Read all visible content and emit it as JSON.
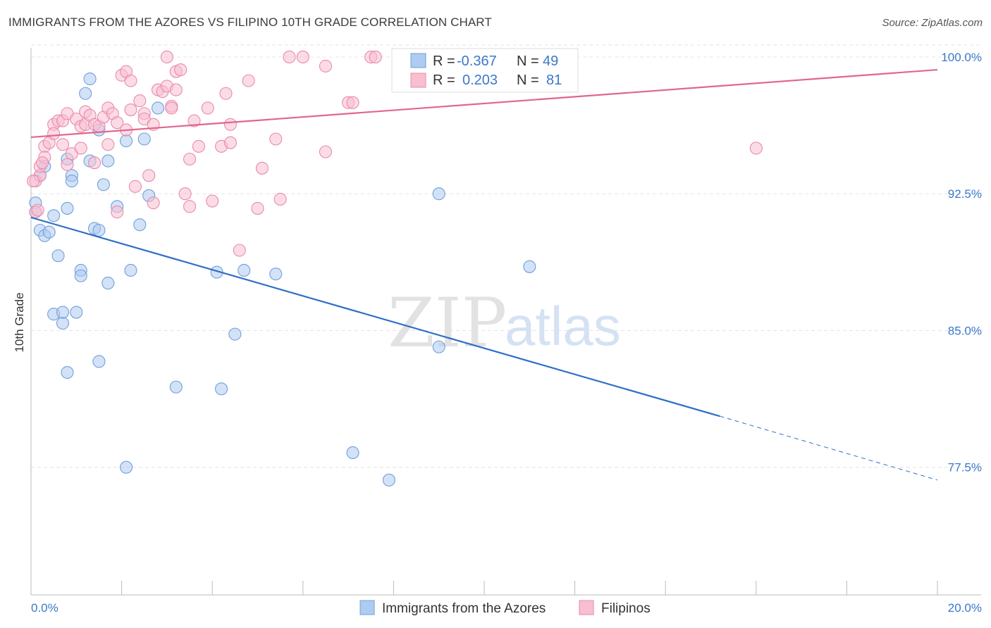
{
  "title": "IMMIGRANTS FROM THE AZORES VS FILIPINO 10TH GRADE CORRELATION CHART",
  "source": "Source: ZipAtlas.com",
  "watermark": {
    "zip": "ZIP",
    "atlas": "atlas"
  },
  "legend": {
    "rows": [
      {
        "r_label": "R =",
        "r_value": "-0.367",
        "n_label": "N =",
        "n_value": "49",
        "color": "#a8c8f0"
      },
      {
        "r_label": "R =",
        "r_value": " 0.203",
        "n_label": "N =",
        "n_value": "81",
        "color": "#f5b6ca"
      }
    ]
  },
  "chart_data": {
    "type": "scatter",
    "title": "IMMIGRANTS FROM THE AZORES VS FILIPINO 10TH GRADE CORRELATION CHART",
    "xlabel": "",
    "ylabel": "10th Grade",
    "xlim": [
      0,
      20
    ],
    "ylim": [
      70.5,
      100.5
    ],
    "x_tick_labels": [
      "0.0%",
      "20.0%"
    ],
    "y_ticks": [
      77.5,
      85.0,
      92.5,
      100.0
    ],
    "y_tick_labels": [
      "77.5%",
      "85.0%",
      "92.5%",
      "100.0%"
    ],
    "grid": true,
    "legend_position": "top-center",
    "series": [
      {
        "name": "Immigrants from the Azores",
        "color": "#6fa0dc",
        "fill": "#aecbf0",
        "trend": {
          "x": [
            0,
            15.2
          ],
          "y": [
            91.2,
            80.3
          ],
          "dash_to": [
            20,
            76.8
          ]
        },
        "points": [
          [
            0.1,
            92.0
          ],
          [
            0.1,
            91.5
          ],
          [
            0.2,
            93.5
          ],
          [
            0.3,
            94.0
          ],
          [
            0.2,
            90.5
          ],
          [
            0.3,
            90.2
          ],
          [
            0.4,
            90.4
          ],
          [
            0.5,
            91.3
          ],
          [
            0.6,
            89.1
          ],
          [
            0.8,
            94.4
          ],
          [
            0.8,
            91.7
          ],
          [
            0.9,
            93.5
          ],
          [
            0.9,
            93.2
          ],
          [
            1.1,
            88.3
          ],
          [
            1.1,
            88.0
          ],
          [
            1.2,
            98.0
          ],
          [
            1.3,
            98.8
          ],
          [
            1.3,
            94.3
          ],
          [
            1.4,
            90.6
          ],
          [
            1.5,
            96.0
          ],
          [
            1.5,
            90.5
          ],
          [
            1.6,
            93.0
          ],
          [
            1.7,
            94.3
          ],
          [
            1.7,
            87.6
          ],
          [
            1.9,
            91.8
          ],
          [
            2.1,
            95.4
          ],
          [
            2.2,
            88.3
          ],
          [
            2.4,
            90.8
          ],
          [
            2.5,
            95.5
          ],
          [
            2.6,
            92.4
          ],
          [
            2.8,
            97.2
          ],
          [
            0.5,
            85.9
          ],
          [
            0.7,
            85.4
          ],
          [
            0.7,
            86.0
          ],
          [
            1.0,
            86.0
          ],
          [
            0.8,
            82.7
          ],
          [
            1.5,
            83.3
          ],
          [
            3.2,
            81.9
          ],
          [
            4.1,
            88.2
          ],
          [
            4.7,
            88.3
          ],
          [
            5.4,
            88.1
          ],
          [
            4.5,
            84.8
          ],
          [
            4.2,
            81.8
          ],
          [
            7.1,
            78.3
          ],
          [
            2.1,
            77.5
          ],
          [
            7.9,
            76.8
          ],
          [
            9.0,
            92.5
          ],
          [
            9.0,
            84.1
          ],
          [
            11.0,
            88.5
          ]
        ]
      },
      {
        "name": "Filipinos",
        "color": "#e98aaa",
        "fill": "#f7bfd1",
        "trend": {
          "x": [
            0,
            20
          ],
          "y": [
            95.6,
            99.3
          ]
        },
        "points": [
          [
            0.1,
            93.2
          ],
          [
            0.1,
            91.5
          ],
          [
            0.2,
            93.5
          ],
          [
            0.2,
            94.0
          ],
          [
            0.3,
            95.1
          ],
          [
            0.3,
            94.5
          ],
          [
            0.4,
            95.3
          ],
          [
            0.5,
            96.3
          ],
          [
            0.5,
            95.8
          ],
          [
            0.6,
            96.5
          ],
          [
            0.7,
            96.5
          ],
          [
            0.7,
            95.2
          ],
          [
            0.8,
            96.9
          ],
          [
            0.8,
            94.1
          ],
          [
            0.9,
            94.7
          ],
          [
            1.0,
            96.6
          ],
          [
            1.1,
            96.2
          ],
          [
            1.1,
            95.0
          ],
          [
            1.2,
            96.3
          ],
          [
            1.2,
            97.0
          ],
          [
            1.3,
            96.8
          ],
          [
            1.4,
            96.3
          ],
          [
            1.4,
            94.2
          ],
          [
            1.5,
            96.2
          ],
          [
            1.6,
            96.7
          ],
          [
            1.7,
            97.2
          ],
          [
            1.7,
            95.2
          ],
          [
            1.8,
            96.9
          ],
          [
            1.9,
            96.4
          ],
          [
            1.9,
            91.5
          ],
          [
            2.0,
            99.0
          ],
          [
            2.1,
            99.2
          ],
          [
            2.1,
            96.0
          ],
          [
            2.2,
            97.1
          ],
          [
            2.2,
            98.7
          ],
          [
            2.3,
            92.9
          ],
          [
            2.4,
            97.6
          ],
          [
            2.5,
            96.9
          ],
          [
            2.5,
            96.6
          ],
          [
            2.6,
            93.5
          ],
          [
            2.7,
            96.3
          ],
          [
            2.7,
            92.0
          ],
          [
            2.8,
            98.2
          ],
          [
            2.9,
            98.1
          ],
          [
            3.0,
            100.0
          ],
          [
            3.0,
            98.4
          ],
          [
            3.1,
            97.3
          ],
          [
            3.1,
            97.2
          ],
          [
            3.2,
            98.2
          ],
          [
            3.2,
            99.2
          ],
          [
            3.3,
            99.3
          ],
          [
            3.4,
            92.5
          ],
          [
            3.5,
            94.4
          ],
          [
            3.6,
            96.5
          ],
          [
            3.7,
            95.1
          ],
          [
            3.5,
            91.8
          ],
          [
            3.9,
            97.2
          ],
          [
            4.0,
            92.1
          ],
          [
            4.2,
            95.1
          ],
          [
            4.3,
            98.0
          ],
          [
            4.4,
            95.3
          ],
          [
            4.4,
            96.3
          ],
          [
            4.6,
            89.4
          ],
          [
            4.8,
            98.7
          ],
          [
            5.1,
            93.9
          ],
          [
            5.0,
            91.7
          ],
          [
            5.4,
            95.5
          ],
          [
            5.5,
            92.2
          ],
          [
            5.7,
            100.0
          ],
          [
            6.0,
            100.0
          ],
          [
            6.5,
            99.5
          ],
          [
            6.5,
            94.8
          ],
          [
            7.0,
            97.5
          ],
          [
            7.1,
            97.5
          ],
          [
            7.5,
            100.0
          ],
          [
            7.6,
            100.0
          ],
          [
            11.7,
            100.0
          ],
          [
            16.0,
            95.0
          ],
          [
            0.05,
            93.2
          ],
          [
            0.15,
            91.6
          ],
          [
            0.25,
            94.2
          ]
        ]
      }
    ]
  },
  "bottom_legend": [
    {
      "label": "Immigrants from the Azores"
    },
    {
      "label": "Filipinos"
    }
  ]
}
